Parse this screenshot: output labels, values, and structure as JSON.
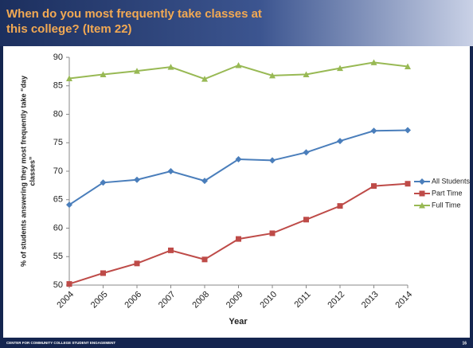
{
  "slide": {
    "title": [
      "When do you most frequently take classes at",
      "this college?  (Item 22)"
    ],
    "footer": "CENTER FOR COMMUNITY COLLEGE STUDENT ENGAGEMENT",
    "page_number": "16"
  },
  "chart_data": {
    "type": "line",
    "ylabel": [
      "% of students answering they most frequently take “day",
      "classes”"
    ],
    "xlabel": "Year",
    "categories": [
      "2004",
      "2005",
      "2006",
      "2007",
      "2008",
      "2009",
      "2010",
      "2011",
      "2012",
      "2013",
      "2014"
    ],
    "series": [
      {
        "name": "All Students",
        "color": "#4a7ebb",
        "marker": "diamond",
        "values": [
          64.1,
          68.0,
          68.5,
          70.0,
          68.3,
          72.1,
          71.9,
          73.3,
          75.3,
          77.1,
          77.2
        ]
      },
      {
        "name": "Part Time",
        "color": "#be4b48",
        "marker": "square",
        "values": [
          50.2,
          52.1,
          53.8,
          56.1,
          54.5,
          58.1,
          59.1,
          61.5,
          63.9,
          67.4,
          67.8
        ]
      },
      {
        "name": "Full Time",
        "color": "#98b954",
        "marker": "triangle",
        "values": [
          86.3,
          87.0,
          87.6,
          88.3,
          86.2,
          88.6,
          86.8,
          87.0,
          88.1,
          89.1,
          88.4
        ]
      }
    ],
    "ylim": [
      50,
      90
    ],
    "yticks": [
      50,
      55,
      60,
      65,
      70,
      75,
      80,
      85,
      90
    ],
    "legend": "right"
  }
}
